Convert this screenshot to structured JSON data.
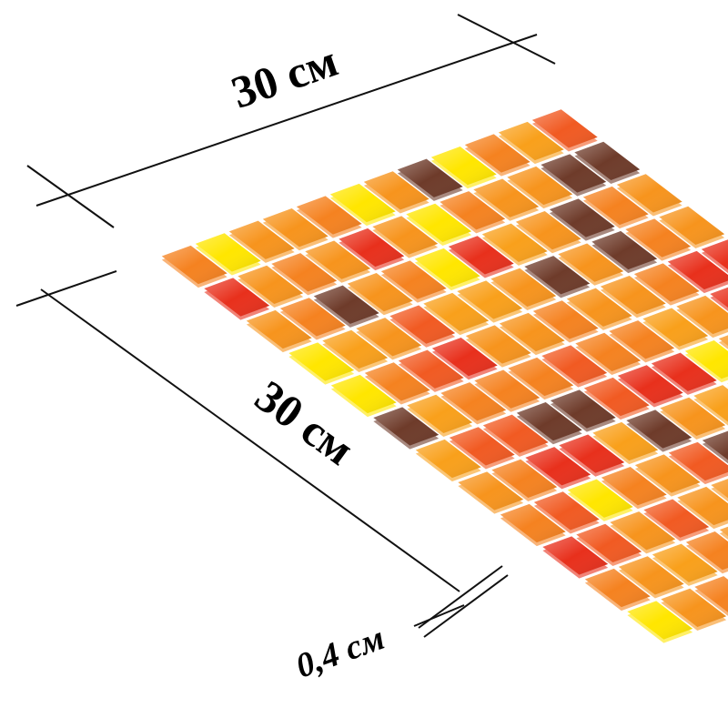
{
  "labels": {
    "width": "30 см",
    "length": "30 см",
    "thickness": "0,4 см"
  }
}
